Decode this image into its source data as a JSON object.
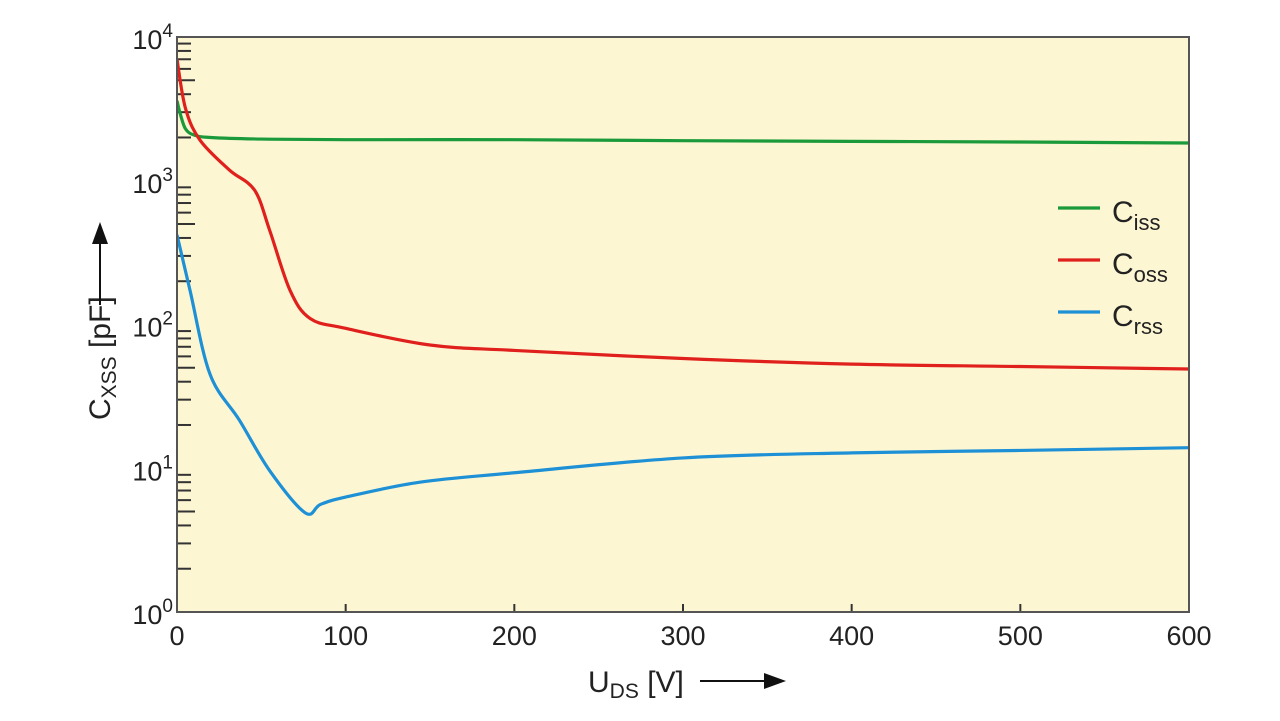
{
  "chart_data": {
    "type": "line",
    "xlabel": "U",
    "xlabel_sub": "DS",
    "xlabel_unit": " [V]",
    "ylabel": "C",
    "ylabel_sub": "XSS",
    "ylabel_unit": " [pF]",
    "xlim": [
      0,
      600
    ],
    "ylim": [
      1,
      10000
    ],
    "y_scale": "log",
    "x_ticks": [
      "0",
      "100",
      "200",
      "300",
      "400",
      "500",
      "600"
    ],
    "y_ticks": [
      {
        "base": "10",
        "exp": "0"
      },
      {
        "base": "10",
        "exp": "1"
      },
      {
        "base": "10",
        "exp": "2"
      },
      {
        "base": "10",
        "exp": "3"
      },
      {
        "base": "10",
        "exp": "4"
      }
    ],
    "grid": false,
    "legend_placement": "right",
    "background": "#fdf6d2",
    "series": [
      {
        "name": "C",
        "sub": "iss",
        "color": "#1a9a3a",
        "x": [
          0,
          2,
          5,
          10,
          20,
          50,
          100,
          200,
          300,
          400,
          500,
          600
        ],
        "y": [
          3600,
          2900,
          2300,
          2080,
          2000,
          1950,
          1930,
          1930,
          1900,
          1880,
          1860,
          1830
        ]
      },
      {
        "name": "C",
        "sub": "oss",
        "color": "#e0201c",
        "x": [
          0,
          5,
          13.6,
          31,
          46,
          55,
          67,
          79,
          100,
          150,
          200,
          300,
          400,
          500,
          600
        ],
        "y": [
          7000,
          3200,
          1920,
          1190,
          860,
          450,
          173,
          110,
          94,
          72,
          66,
          58,
          53,
          51,
          49
        ]
      },
      {
        "name": "C",
        "sub": "rss",
        "color": "#1e90d6",
        "x": [
          0,
          7.7,
          19.6,
          37,
          55,
          76,
          85,
          100,
          144,
          200,
          300,
          400,
          500,
          600
        ],
        "y": [
          420,
          173,
          45,
          21.6,
          9.6,
          4.9,
          5.6,
          6.3,
          8,
          9.3,
          11.8,
          12.8,
          13.3,
          13.9
        ]
      }
    ]
  }
}
